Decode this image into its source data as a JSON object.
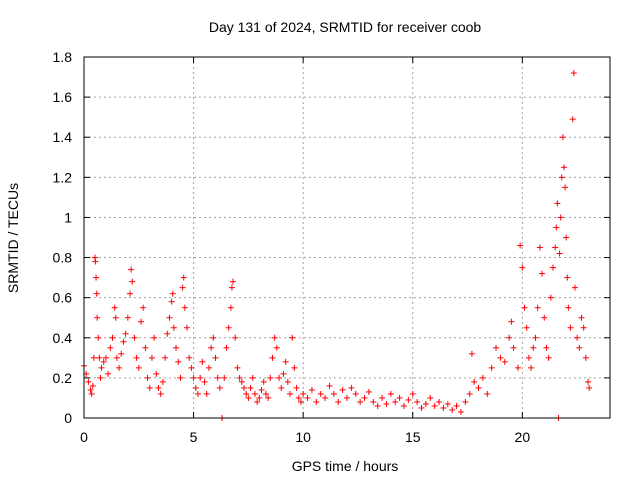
{
  "chart_data": {
    "type": "scatter",
    "title": "Day 131 of 2024, SRMTID for receiver coob",
    "xlabel": "GPS time / hours",
    "ylabel": "SRMTID / TECUs",
    "xlim": [
      0,
      24
    ],
    "ylim": [
      0,
      1.8
    ],
    "xticks": [
      0,
      5,
      10,
      15,
      20
    ],
    "yticks": [
      0,
      0.2,
      0.4,
      0.6,
      0.8,
      1,
      1.2,
      1.4,
      1.6,
      1.8
    ],
    "ytick_labels": [
      "0",
      "0.2",
      "0.4",
      "0.6",
      "0.8",
      "1",
      "1.2",
      "1.4",
      "1.6",
      "1.8"
    ],
    "grid": true,
    "marker": "+",
    "color": "#ff0000",
    "series": [
      {
        "name": "SRMTID",
        "points": [
          [
            0.0,
            0.26
          ],
          [
            0.1,
            0.22
          ],
          [
            0.2,
            0.18
          ],
          [
            0.3,
            0.14
          ],
          [
            0.35,
            0.12
          ],
          [
            0.4,
            0.16
          ],
          [
            0.45,
            0.3
          ],
          [
            0.5,
            0.8
          ],
          [
            0.52,
            0.78
          ],
          [
            0.55,
            0.7
          ],
          [
            0.58,
            0.62
          ],
          [
            0.6,
            0.5
          ],
          [
            0.65,
            0.4
          ],
          [
            0.7,
            0.3
          ],
          [
            0.75,
            0.2
          ],
          [
            0.8,
            0.25
          ],
          [
            0.9,
            0.28
          ],
          [
            1.0,
            0.3
          ],
          [
            1.1,
            0.22
          ],
          [
            1.2,
            0.35
          ],
          [
            1.3,
            0.4
          ],
          [
            1.4,
            0.55
          ],
          [
            1.45,
            0.5
          ],
          [
            1.5,
            0.3
          ],
          [
            1.6,
            0.25
          ],
          [
            1.7,
            0.32
          ],
          [
            1.8,
            0.38
          ],
          [
            1.9,
            0.42
          ],
          [
            2.0,
            0.5
          ],
          [
            2.1,
            0.62
          ],
          [
            2.15,
            0.74
          ],
          [
            2.2,
            0.68
          ],
          [
            2.3,
            0.4
          ],
          [
            2.4,
            0.3
          ],
          [
            2.5,
            0.25
          ],
          [
            2.6,
            0.48
          ],
          [
            2.7,
            0.55
          ],
          [
            2.8,
            0.35
          ],
          [
            2.9,
            0.2
          ],
          [
            3.0,
            0.15
          ],
          [
            3.1,
            0.3
          ],
          [
            3.2,
            0.4
          ],
          [
            3.3,
            0.22
          ],
          [
            3.4,
            0.15
          ],
          [
            3.5,
            0.12
          ],
          [
            3.6,
            0.18
          ],
          [
            3.7,
            0.3
          ],
          [
            3.8,
            0.42
          ],
          [
            3.9,
            0.5
          ],
          [
            4.0,
            0.58
          ],
          [
            4.05,
            0.62
          ],
          [
            4.1,
            0.45
          ],
          [
            4.2,
            0.35
          ],
          [
            4.3,
            0.28
          ],
          [
            4.4,
            0.2
          ],
          [
            4.5,
            0.65
          ],
          [
            4.55,
            0.7
          ],
          [
            4.6,
            0.55
          ],
          [
            4.7,
            0.45
          ],
          [
            4.8,
            0.3
          ],
          [
            4.9,
            0.25
          ],
          [
            5.0,
            0.2
          ],
          [
            5.1,
            0.15
          ],
          [
            5.2,
            0.12
          ],
          [
            5.3,
            0.2
          ],
          [
            5.4,
            0.28
          ],
          [
            5.5,
            0.18
          ],
          [
            5.6,
            0.12
          ],
          [
            5.7,
            0.25
          ],
          [
            5.8,
            0.35
          ],
          [
            5.9,
            0.4
          ],
          [
            6.0,
            0.3
          ],
          [
            6.1,
            0.2
          ],
          [
            6.2,
            0.15
          ],
          [
            6.3,
            0.0
          ],
          [
            6.4,
            0.2
          ],
          [
            6.5,
            0.35
          ],
          [
            6.6,
            0.45
          ],
          [
            6.7,
            0.55
          ],
          [
            6.75,
            0.65
          ],
          [
            6.8,
            0.68
          ],
          [
            6.9,
            0.4
          ],
          [
            7.0,
            0.25
          ],
          [
            7.1,
            0.2
          ],
          [
            7.2,
            0.18
          ],
          [
            7.3,
            0.15
          ],
          [
            7.4,
            0.12
          ],
          [
            7.5,
            0.1
          ],
          [
            7.6,
            0.15
          ],
          [
            7.7,
            0.2
          ],
          [
            7.8,
            0.12
          ],
          [
            7.9,
            0.08
          ],
          [
            8.0,
            0.1
          ],
          [
            8.1,
            0.14
          ],
          [
            8.2,
            0.18
          ],
          [
            8.3,
            0.12
          ],
          [
            8.4,
            0.1
          ],
          [
            8.5,
            0.2
          ],
          [
            8.6,
            0.3
          ],
          [
            8.7,
            0.4
          ],
          [
            8.8,
            0.35
          ],
          [
            8.9,
            0.2
          ],
          [
            9.0,
            0.15
          ],
          [
            9.1,
            0.22
          ],
          [
            9.2,
            0.28
          ],
          [
            9.3,
            0.18
          ],
          [
            9.4,
            0.12
          ],
          [
            9.5,
            0.4
          ],
          [
            9.6,
            0.25
          ],
          [
            9.7,
            0.15
          ],
          [
            9.8,
            0.1
          ],
          [
            9.9,
            0.08
          ],
          [
            10.0,
            0.12
          ],
          [
            10.2,
            0.1
          ],
          [
            10.4,
            0.14
          ],
          [
            10.6,
            0.08
          ],
          [
            10.8,
            0.12
          ],
          [
            11.0,
            0.1
          ],
          [
            11.2,
            0.16
          ],
          [
            11.4,
            0.12
          ],
          [
            11.6,
            0.08
          ],
          [
            11.8,
            0.14
          ],
          [
            12.0,
            0.1
          ],
          [
            12.2,
            0.15
          ],
          [
            12.4,
            0.12
          ],
          [
            12.6,
            0.08
          ],
          [
            12.8,
            0.1
          ],
          [
            13.0,
            0.13
          ],
          [
            13.2,
            0.08
          ],
          [
            13.4,
            0.06
          ],
          [
            13.6,
            0.1
          ],
          [
            13.8,
            0.07
          ],
          [
            14.0,
            0.12
          ],
          [
            14.2,
            0.08
          ],
          [
            14.4,
            0.1
          ],
          [
            14.6,
            0.06
          ],
          [
            14.8,
            0.09
          ],
          [
            15.0,
            0.12
          ],
          [
            15.2,
            0.08
          ],
          [
            15.4,
            0.05
          ],
          [
            15.6,
            0.07
          ],
          [
            15.8,
            0.1
          ],
          [
            16.0,
            0.06
          ],
          [
            16.2,
            0.08
          ],
          [
            16.4,
            0.05
          ],
          [
            16.6,
            0.07
          ],
          [
            16.8,
            0.04
          ],
          [
            17.0,
            0.06
          ],
          [
            17.2,
            0.03
          ],
          [
            17.4,
            0.08
          ],
          [
            17.6,
            0.12
          ],
          [
            17.7,
            0.32
          ],
          [
            17.8,
            0.18
          ],
          [
            18.0,
            0.15
          ],
          [
            18.2,
            0.2
          ],
          [
            18.4,
            0.12
          ],
          [
            18.6,
            0.25
          ],
          [
            18.8,
            0.35
          ],
          [
            19.0,
            0.3
          ],
          [
            19.2,
            0.28
          ],
          [
            19.4,
            0.4
          ],
          [
            19.5,
            0.48
          ],
          [
            19.6,
            0.35
          ],
          [
            19.8,
            0.25
          ],
          [
            19.9,
            0.86
          ],
          [
            20.0,
            0.75
          ],
          [
            20.1,
            0.55
          ],
          [
            20.2,
            0.45
          ],
          [
            20.3,
            0.3
          ],
          [
            20.4,
            0.25
          ],
          [
            20.5,
            0.35
          ],
          [
            20.6,
            0.4
          ],
          [
            20.7,
            0.55
          ],
          [
            20.8,
            0.85
          ],
          [
            20.9,
            0.72
          ],
          [
            21.0,
            0.5
          ],
          [
            21.1,
            0.35
          ],
          [
            21.2,
            0.3
          ],
          [
            21.3,
            0.6
          ],
          [
            21.4,
            0.75
          ],
          [
            21.5,
            0.85
          ],
          [
            21.55,
            0.95
          ],
          [
            21.6,
            1.07
          ],
          [
            21.65,
            0.0
          ],
          [
            21.7,
            0.82
          ],
          [
            21.75,
            1.0
          ],
          [
            21.8,
            1.2
          ],
          [
            21.85,
            1.4
          ],
          [
            21.9,
            1.25
          ],
          [
            21.95,
            1.15
          ],
          [
            22.0,
            0.9
          ],
          [
            22.05,
            0.7
          ],
          [
            22.1,
            0.55
          ],
          [
            22.2,
            0.45
          ],
          [
            22.3,
            1.49
          ],
          [
            22.35,
            1.72
          ],
          [
            22.4,
            0.65
          ],
          [
            22.5,
            0.4
          ],
          [
            22.6,
            0.35
          ],
          [
            22.7,
            0.5
          ],
          [
            22.8,
            0.45
          ],
          [
            22.9,
            0.3
          ],
          [
            23.0,
            0.18
          ],
          [
            23.05,
            0.15
          ]
        ]
      }
    ]
  }
}
